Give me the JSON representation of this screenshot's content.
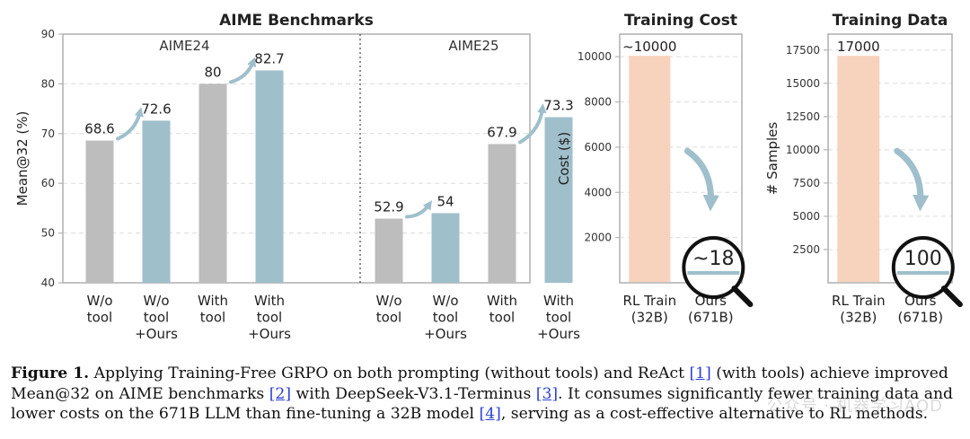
{
  "colors": {
    "baseline": "#bdbdbd",
    "ours": "#9fbfcb",
    "arrow": "#9ebfcb",
    "rl_train": "#f7d3bd",
    "axis": "#b4b4b4",
    "grid": "#dcdcdc",
    "link": "#2b3fd8"
  },
  "chart_data": [
    {
      "type": "bar",
      "title": "AIME Benchmarks",
      "ylabel": "Mean@32 (%)",
      "ylim": [
        40,
        90
      ],
      "yticks": [
        40,
        50,
        60,
        70,
        80,
        90
      ],
      "grid": true,
      "groups": [
        {
          "name": "AIME24",
          "bars": [
            {
              "label": "W/o\ntool",
              "value": 68.6,
              "kind": "baseline",
              "value_label": "68.6"
            },
            {
              "label": "W/o\ntool\n+Ours",
              "value": 72.6,
              "kind": "ours",
              "value_label": "72.6"
            },
            {
              "label": "With\ntool",
              "value": 80,
              "kind": "baseline",
              "value_label": "80"
            },
            {
              "label": "With\ntool\n+Ours",
              "value": 82.7,
              "kind": "ours",
              "value_label": "82.7"
            }
          ]
        },
        {
          "name": "AIME25",
          "bars": [
            {
              "label": "W/o\ntool",
              "value": 52.9,
              "kind": "baseline",
              "value_label": "52.9"
            },
            {
              "label": "W/o\ntool\n+Ours",
              "value": 54,
              "kind": "ours",
              "value_label": "54"
            },
            {
              "label": "With\ntool",
              "value": 67.9,
              "kind": "baseline",
              "value_label": "67.9"
            },
            {
              "label": "With\ntool\n+Ours",
              "value": 73.3,
              "kind": "ours",
              "value_label": "73.3"
            }
          ]
        }
      ]
    },
    {
      "type": "bar",
      "title": "Training Cost",
      "ylabel": "Cost ($)",
      "ylim": [
        0,
        11000
      ],
      "yticks": [
        2000,
        4000,
        6000,
        8000,
        10000
      ],
      "grid": true,
      "categories": [
        "RL Train\n(32B)",
        "Ours\n(671B)"
      ],
      "values": [
        10000,
        18
      ],
      "value_labels": [
        "~10000",
        "~18"
      ],
      "kinds": [
        "rl",
        "ours"
      ]
    },
    {
      "type": "bar",
      "title": "Training Data",
      "ylabel": "# Samples",
      "ylim": [
        0,
        18700
      ],
      "yticks": [
        2500,
        5000,
        7500,
        10000,
        12500,
        15000,
        17500
      ],
      "grid": true,
      "categories": [
        "RL Train\n(32B)",
        "Ours\n(671B)"
      ],
      "values": [
        17000,
        100
      ],
      "value_labels": [
        "17000",
        "100"
      ],
      "kinds": [
        "rl",
        "ours"
      ]
    }
  ],
  "caption": {
    "label": "Figure 1.",
    "seg1": " Applying Training-Free GRPO on both prompting (without tools) and ReAct ",
    "ref1": "[1]",
    "seg2": " (with tools) achieve improved Mean@32 on AIME benchmarks ",
    "ref2": "[2]",
    "seg3": " with DeepSeek-V3.1-Terminus ",
    "ref3": "[3]",
    "seg4": ". It consumes significantly fewer training data and lower costs on the 671B LLM than fine-tuning a 32B model ",
    "ref4": "[4]",
    "seg5": ", serving as a cost-effective alternative to RL methods."
  },
  "watermark": "公众号 · 机器学习AOD"
}
